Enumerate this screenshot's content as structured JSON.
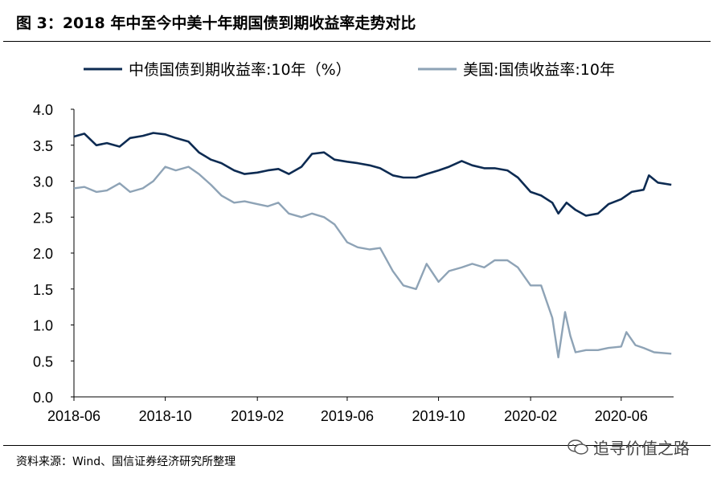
{
  "title": "图 3：2018 年中至今中美十年期国债到期收益率走势对比",
  "source": "资料来源：Wind、国信证券经济研究所整理",
  "watermark": "追寻价值之路",
  "chart_data": {
    "type": "line",
    "legend_position": "top",
    "grid": false,
    "ylim": [
      0.0,
      4.0
    ],
    "yticks": [
      "0.0",
      "0.5",
      "1.0",
      "1.5",
      "2.0",
      "2.5",
      "3.0",
      "3.5",
      "4.0"
    ],
    "xlim": [
      "2018-06-01",
      "2020-08-10"
    ],
    "xticks": [
      {
        "date": "2018-06-01",
        "label": "2018-06"
      },
      {
        "date": "2018-10-01",
        "label": "2018-10"
      },
      {
        "date": "2019-02-01",
        "label": "2019-02"
      },
      {
        "date": "2019-06-01",
        "label": "2019-06"
      },
      {
        "date": "2019-10-01",
        "label": "2019-10"
      },
      {
        "date": "2020-02-01",
        "label": "2020-02"
      },
      {
        "date": "2020-06-01",
        "label": "2020-06"
      }
    ],
    "series": [
      {
        "name": "中债国债到期收益率:10年（%）",
        "color": "#0d2b52",
        "points": [
          [
            "2018-06-01",
            3.62
          ],
          [
            "2018-06-15",
            3.66
          ],
          [
            "2018-07-01",
            3.5
          ],
          [
            "2018-07-15",
            3.53
          ],
          [
            "2018-08-01",
            3.48
          ],
          [
            "2018-08-15",
            3.6
          ],
          [
            "2018-09-01",
            3.63
          ],
          [
            "2018-09-15",
            3.67
          ],
          [
            "2018-10-01",
            3.65
          ],
          [
            "2018-10-15",
            3.6
          ],
          [
            "2018-11-01",
            3.55
          ],
          [
            "2018-11-15",
            3.4
          ],
          [
            "2018-12-01",
            3.3
          ],
          [
            "2018-12-15",
            3.25
          ],
          [
            "2019-01-01",
            3.15
          ],
          [
            "2019-01-15",
            3.1
          ],
          [
            "2019-02-01",
            3.12
          ],
          [
            "2019-02-15",
            3.15
          ],
          [
            "2019-03-01",
            3.17
          ],
          [
            "2019-03-15",
            3.1
          ],
          [
            "2019-04-01",
            3.2
          ],
          [
            "2019-04-15",
            3.38
          ],
          [
            "2019-05-01",
            3.4
          ],
          [
            "2019-05-15",
            3.3
          ],
          [
            "2019-06-01",
            3.27
          ],
          [
            "2019-06-15",
            3.25
          ],
          [
            "2019-07-01",
            3.22
          ],
          [
            "2019-07-15",
            3.18
          ],
          [
            "2019-08-01",
            3.08
          ],
          [
            "2019-08-15",
            3.05
          ],
          [
            "2019-09-01",
            3.05
          ],
          [
            "2019-09-15",
            3.1
          ],
          [
            "2019-10-01",
            3.15
          ],
          [
            "2019-10-15",
            3.2
          ],
          [
            "2019-11-01",
            3.28
          ],
          [
            "2019-11-15",
            3.22
          ],
          [
            "2019-12-01",
            3.18
          ],
          [
            "2019-12-15",
            3.18
          ],
          [
            "2020-01-01",
            3.15
          ],
          [
            "2020-01-15",
            3.05
          ],
          [
            "2020-02-01",
            2.85
          ],
          [
            "2020-02-15",
            2.8
          ],
          [
            "2020-03-01",
            2.7
          ],
          [
            "2020-03-09",
            2.55
          ],
          [
            "2020-03-20",
            2.7
          ],
          [
            "2020-04-01",
            2.6
          ],
          [
            "2020-04-15",
            2.52
          ],
          [
            "2020-05-01",
            2.55
          ],
          [
            "2020-05-15",
            2.68
          ],
          [
            "2020-06-01",
            2.75
          ],
          [
            "2020-06-15",
            2.85
          ],
          [
            "2020-07-01",
            2.88
          ],
          [
            "2020-07-08",
            3.08
          ],
          [
            "2020-07-20",
            2.98
          ],
          [
            "2020-08-07",
            2.95
          ]
        ]
      },
      {
        "name": "美国:国债收益率:10年",
        "color": "#8ea3b6",
        "points": [
          [
            "2018-06-01",
            2.9
          ],
          [
            "2018-06-15",
            2.92
          ],
          [
            "2018-07-01",
            2.85
          ],
          [
            "2018-07-15",
            2.87
          ],
          [
            "2018-08-01",
            2.97
          ],
          [
            "2018-08-15",
            2.85
          ],
          [
            "2018-09-01",
            2.9
          ],
          [
            "2018-09-15",
            3.0
          ],
          [
            "2018-10-01",
            3.2
          ],
          [
            "2018-10-15",
            3.15
          ],
          [
            "2018-11-01",
            3.2
          ],
          [
            "2018-11-15",
            3.1
          ],
          [
            "2018-12-01",
            2.95
          ],
          [
            "2018-12-15",
            2.8
          ],
          [
            "2019-01-01",
            2.7
          ],
          [
            "2019-01-15",
            2.72
          ],
          [
            "2019-02-01",
            2.68
          ],
          [
            "2019-02-15",
            2.65
          ],
          [
            "2019-03-01",
            2.7
          ],
          [
            "2019-03-15",
            2.55
          ],
          [
            "2019-04-01",
            2.5
          ],
          [
            "2019-04-15",
            2.55
          ],
          [
            "2019-05-01",
            2.5
          ],
          [
            "2019-05-15",
            2.4
          ],
          [
            "2019-06-01",
            2.15
          ],
          [
            "2019-06-15",
            2.08
          ],
          [
            "2019-07-01",
            2.05
          ],
          [
            "2019-07-15",
            2.07
          ],
          [
            "2019-08-01",
            1.75
          ],
          [
            "2019-08-15",
            1.55
          ],
          [
            "2019-09-01",
            1.5
          ],
          [
            "2019-09-15",
            1.85
          ],
          [
            "2019-10-01",
            1.6
          ],
          [
            "2019-10-15",
            1.75
          ],
          [
            "2019-11-01",
            1.8
          ],
          [
            "2019-11-15",
            1.85
          ],
          [
            "2019-12-01",
            1.8
          ],
          [
            "2019-12-15",
            1.9
          ],
          [
            "2020-01-01",
            1.9
          ],
          [
            "2020-01-15",
            1.8
          ],
          [
            "2020-02-01",
            1.55
          ],
          [
            "2020-02-15",
            1.55
          ],
          [
            "2020-03-01",
            1.1
          ],
          [
            "2020-03-09",
            0.55
          ],
          [
            "2020-03-18",
            1.18
          ],
          [
            "2020-03-25",
            0.85
          ],
          [
            "2020-04-01",
            0.62
          ],
          [
            "2020-04-15",
            0.65
          ],
          [
            "2020-05-01",
            0.65
          ],
          [
            "2020-05-15",
            0.68
          ],
          [
            "2020-06-01",
            0.7
          ],
          [
            "2020-06-08",
            0.9
          ],
          [
            "2020-06-20",
            0.72
          ],
          [
            "2020-07-01",
            0.68
          ],
          [
            "2020-07-15",
            0.62
          ],
          [
            "2020-08-07",
            0.6
          ]
        ]
      }
    ]
  }
}
